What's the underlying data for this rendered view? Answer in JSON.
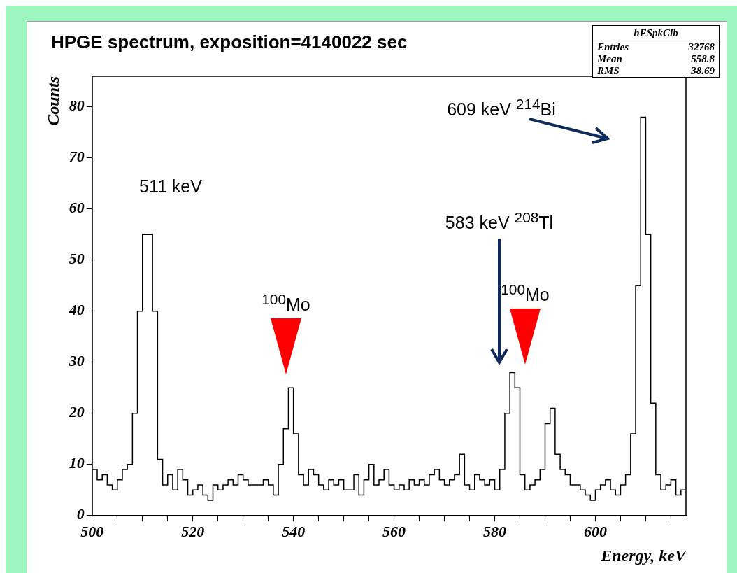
{
  "chart_data": {
    "type": "histogram",
    "title": "HPGE spectrum, exposition=4140022 sec",
    "xlabel": "Energy, keV",
    "ylabel": "Counts",
    "color": "#000000",
    "bins": [
      500,
      501,
      502,
      503,
      504,
      505,
      506,
      507,
      508,
      509,
      510,
      511,
      512,
      513,
      514,
      515,
      516,
      517,
      518,
      519,
      520,
      521,
      522,
      523,
      524,
      525,
      526,
      527,
      528,
      529,
      530,
      531,
      532,
      533,
      534,
      535,
      536,
      537,
      538,
      539,
      540,
      541,
      542,
      543,
      544,
      545,
      546,
      547,
      548,
      549,
      550,
      551,
      552,
      553,
      554,
      555,
      556,
      557,
      558,
      559,
      560,
      561,
      562,
      563,
      564,
      565,
      566,
      567,
      568,
      569,
      570,
      571,
      572,
      573,
      574,
      575,
      576,
      577,
      578,
      579,
      580,
      581,
      582,
      583,
      584,
      585,
      586,
      587,
      588,
      589,
      590,
      591,
      592,
      593,
      594,
      595,
      596,
      597,
      598,
      599,
      600,
      601,
      602,
      603,
      604,
      605,
      606,
      607,
      608,
      609,
      610,
      611,
      612,
      613,
      614,
      615,
      616,
      617,
      618
    ],
    "values": [
      9,
      7,
      8,
      6,
      5,
      7,
      9,
      10,
      20,
      40,
      55,
      55,
      40,
      11,
      6,
      8,
      5,
      9,
      7,
      4,
      5,
      6,
      4,
      3,
      6,
      5,
      6,
      7,
      6,
      8,
      7,
      6,
      6,
      6,
      7,
      6,
      4,
      10,
      17,
      25,
      16,
      8,
      6,
      9,
      8,
      6,
      5,
      7,
      6,
      7,
      5,
      5,
      8,
      4,
      7,
      10,
      6,
      7,
      9,
      6,
      5,
      6,
      5,
      7,
      6,
      7,
      6,
      8,
      9,
      7,
      6,
      7,
      8,
      12,
      6,
      5,
      8,
      7,
      6,
      7,
      5,
      9,
      20,
      28,
      25,
      8,
      5,
      6,
      7,
      9,
      18,
      21,
      12,
      9,
      8,
      6,
      6,
      5,
      4,
      3,
      5,
      6,
      7,
      5,
      4,
      6,
      8,
      16,
      45,
      78,
      55,
      22,
      8,
      5,
      6,
      7,
      4,
      5
    ],
    "xlim": [
      500,
      618
    ],
    "ylim": [
      0,
      86
    ],
    "xticks": [
      500,
      {
        "value": 505,
        "label": null
      },
      {
        "value": 510,
        "label": null
      },
      {
        "value": 515,
        "label": null
      },
      520,
      {
        "value": 525,
        "label": null
      },
      {
        "value": 530,
        "label": null
      },
      {
        "value": 535,
        "label": null
      },
      540,
      {
        "value": 545,
        "label": null
      },
      {
        "value": 550,
        "label": null
      },
      {
        "value": 555,
        "label": null
      },
      560,
      {
        "value": 565,
        "label": null
      },
      {
        "value": 570,
        "label": null
      },
      {
        "value": 575,
        "label": null
      },
      580,
      {
        "value": 585,
        "label": null
      },
      {
        "value": 590,
        "label": null
      },
      {
        "value": 595,
        "label": null
      },
      600,
      {
        "value": 605,
        "label": null
      },
      {
        "value": 610,
        "label": null
      },
      {
        "value": 615,
        "label": null
      }
    ],
    "yticks": [
      0,
      10,
      20,
      30,
      40,
      50,
      60,
      70,
      80
    ],
    "annotations": [
      "511 keV",
      "$^{100}$Mo",
      "583 keV $^{208}$Tl",
      "$^{100}$Mo",
      "609 keV $^{214}$Bi",
      "hESpkClb",
      "Entries 32768",
      "Mean 558.8",
      "RMS 38.69"
    ]
  }
}
